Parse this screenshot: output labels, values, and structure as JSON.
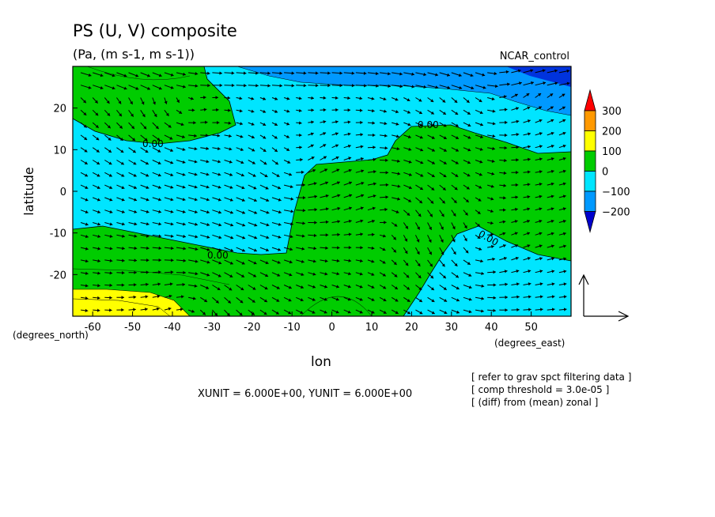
{
  "chart_data": {
    "type": "contour-vector",
    "title": "PS (U, V) composite",
    "subtitle": "(Pa, (m s-1, m s-1))",
    "label_right": "NCAR_control",
    "xlabel": "lon",
    "ylabel": "latitude",
    "x_unit_label": "(degrees_east)",
    "y_unit_label": "(degrees_north)",
    "xlim": [
      -65,
      60
    ],
    "ylim": [
      -30,
      30
    ],
    "x_ticks": [
      -60,
      -50,
      -40,
      -30,
      -20,
      -10,
      0,
      10,
      20,
      30,
      40,
      50
    ],
    "y_ticks": [
      -20,
      -10,
      0,
      10,
      20
    ],
    "contour_label": "0.00",
    "colorbar": {
      "levels": [
        "300",
        "200",
        "100",
        "0",
        "−100",
        "−200"
      ],
      "colors": [
        "#ff0000",
        "#ff9900",
        "#ffff00",
        "#00cc00",
        "#00e5ff",
        "#0099ff",
        "#0000cc"
      ]
    },
    "units_text": "XUNIT = 6.000E+00, YUNIT = 6.000E+00",
    "notes": [
      "[ refer to grav spct filtering data ]",
      "[ comp threshold = 3.0e-05 ]",
      "[ (diff) from (mean) zonal ]"
    ],
    "palette": {
      "yellow": "#ffff00",
      "green": "#00cc00",
      "cyan": "#00e5ff",
      "blue": "#0099ff",
      "dark_blue": "#0033dd"
    }
  }
}
